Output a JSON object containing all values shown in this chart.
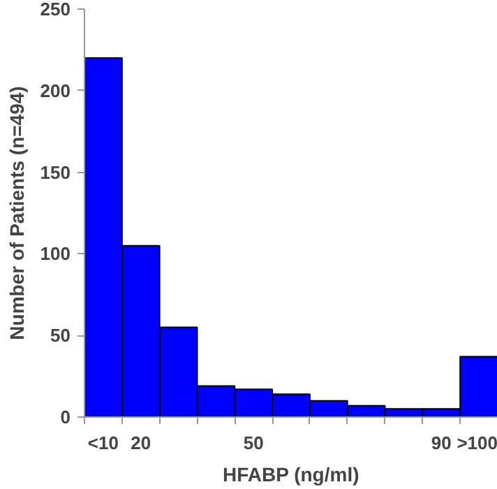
{
  "chart_data": {
    "type": "bar",
    "xlabel": "HFABP (ng/ml)",
    "ylabel": "Number of Patients (n=494)",
    "categories": [
      "<10",
      "20",
      null,
      null,
      "50",
      null,
      null,
      null,
      null,
      "90",
      ">100"
    ],
    "values": [
      220,
      105,
      55,
      19,
      17,
      14,
      10,
      7,
      5,
      5,
      37
    ],
    "color": "#0000ff",
    "ylim": [
      0,
      250
    ],
    "yticks": [
      0,
      50,
      100,
      150,
      200,
      250
    ],
    "grid": false
  }
}
